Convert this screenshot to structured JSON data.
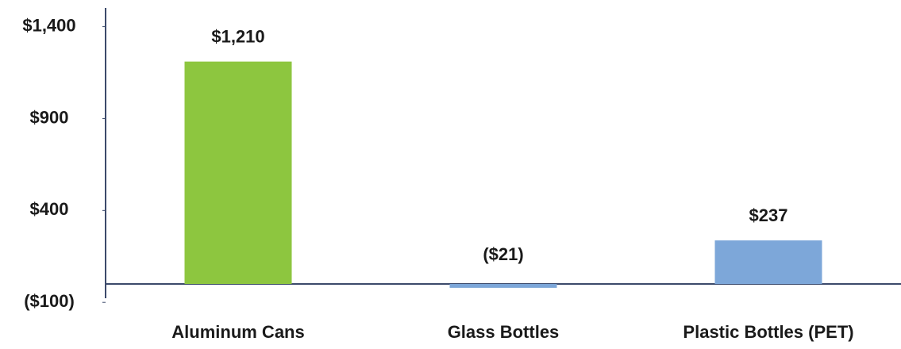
{
  "chart_data": {
    "type": "bar",
    "categories": [
      "Aluminum Cans",
      "Glass Bottles",
      "Plastic Bottles (PET)"
    ],
    "values": [
      1210,
      -21,
      237
    ],
    "value_labels": [
      "$1,210",
      "($21)",
      "$237"
    ],
    "colors": [
      "#8dc63f",
      "#7da7d9",
      "#7da7d9"
    ],
    "negative_color": "#e8344e",
    "ylim": [
      -125,
      1450
    ],
    "yticks": [
      {
        "value": -100,
        "label": "($100)"
      },
      {
        "value": 400,
        "label": "$400"
      },
      {
        "value": 900,
        "label": "$900"
      },
      {
        "value": 1400,
        "label": "$1,400"
      }
    ],
    "grid": false
  }
}
